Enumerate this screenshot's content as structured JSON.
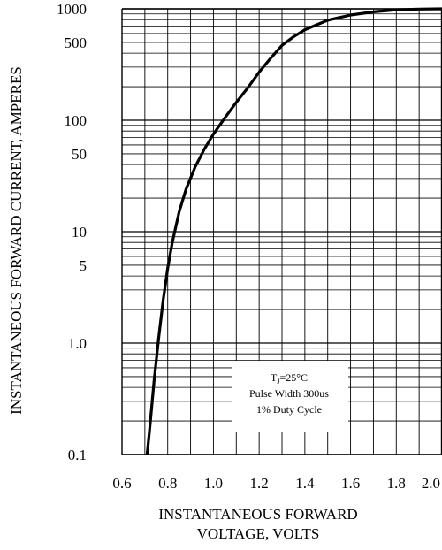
{
  "chart_data": {
    "type": "line",
    "title": "",
    "xlabel_lines": [
      "INSTANTANEOUS FORWARD",
      "VOLTAGE, VOLTS"
    ],
    "ylabel": "INSTANTANEOUS FORWARD CURRENT, AMPERES",
    "x_scale": "linear",
    "y_scale": "log",
    "xlim": [
      0.6,
      2.0
    ],
    "ylim": [
      0.1,
      1000
    ],
    "x_ticks": [
      "0.6",
      "0.8",
      "1.0",
      "1.2",
      "1.4",
      "1.6",
      "1.8",
      "2.0"
    ],
    "y_ticks": [
      {
        "value": 0.1,
        "label": "0.1"
      },
      {
        "value": 1,
        "label": "1.0"
      },
      {
        "value": 5,
        "label": "5"
      },
      {
        "value": 10,
        "label": "10"
      },
      {
        "value": 50,
        "label": "50"
      },
      {
        "value": 100,
        "label": "100"
      },
      {
        "value": 500,
        "label": "500"
      },
      {
        "value": 1000,
        "label": "1000"
      }
    ],
    "grid": true,
    "series": [
      {
        "x": [
          0.71,
          0.72,
          0.74,
          0.76,
          0.78,
          0.8,
          0.82,
          0.85,
          0.88,
          0.92,
          0.96,
          1.0,
          1.05,
          1.1,
          1.15,
          1.2,
          1.25,
          1.3,
          1.35,
          1.4,
          1.5,
          1.6,
          1.7,
          1.8,
          1.9,
          2.0
        ],
        "y": [
          0.1,
          0.16,
          0.45,
          1.1,
          2.4,
          4.7,
          8.0,
          15,
          24,
          38,
          55,
          75,
          105,
          145,
          195,
          270,
          360,
          470,
          560,
          650,
          790,
          880,
          940,
          980,
          995,
          1000
        ]
      }
    ],
    "annotation": {
      "tj_main": "T",
      "tj_sub": "J",
      "tj_rest": "=25°C",
      "line2": "Pulse Width 300us",
      "line3": "1% Duty Cycle"
    }
  }
}
